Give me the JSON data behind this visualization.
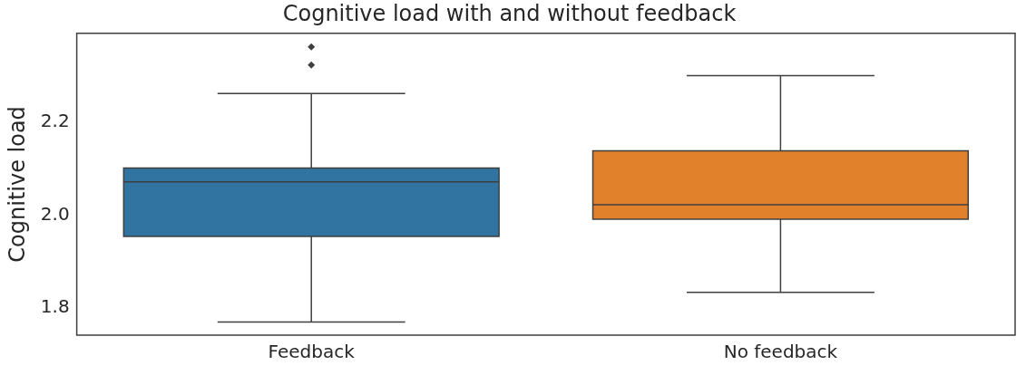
{
  "chart_data": {
    "type": "box",
    "title": "Cognitive load with and without feedback",
    "ylabel": "Cognitive load",
    "categories": [
      "Feedback",
      "No feedback"
    ],
    "colors": [
      "#3274a1",
      "#e1812c"
    ],
    "boxes": [
      {
        "low": 1.77,
        "q1": 1.954,
        "median": 2.071,
        "q3": 2.101,
        "high": 2.261,
        "outliers": [
          2.322,
          2.361
        ]
      },
      {
        "low": 1.834,
        "q1": 1.991,
        "median": 2.022,
        "q3": 2.138,
        "high": 2.299
      }
    ],
    "ylim": [
      1.742,
      2.39
    ],
    "yticks": [
      {
        "value": 1.8,
        "label": "1.8"
      },
      {
        "value": 2,
        "label": "2.0"
      },
      {
        "value": 2.2,
        "label": "2.2"
      }
    ],
    "grid": false,
    "legend": false,
    "marker": "diamond"
  }
}
